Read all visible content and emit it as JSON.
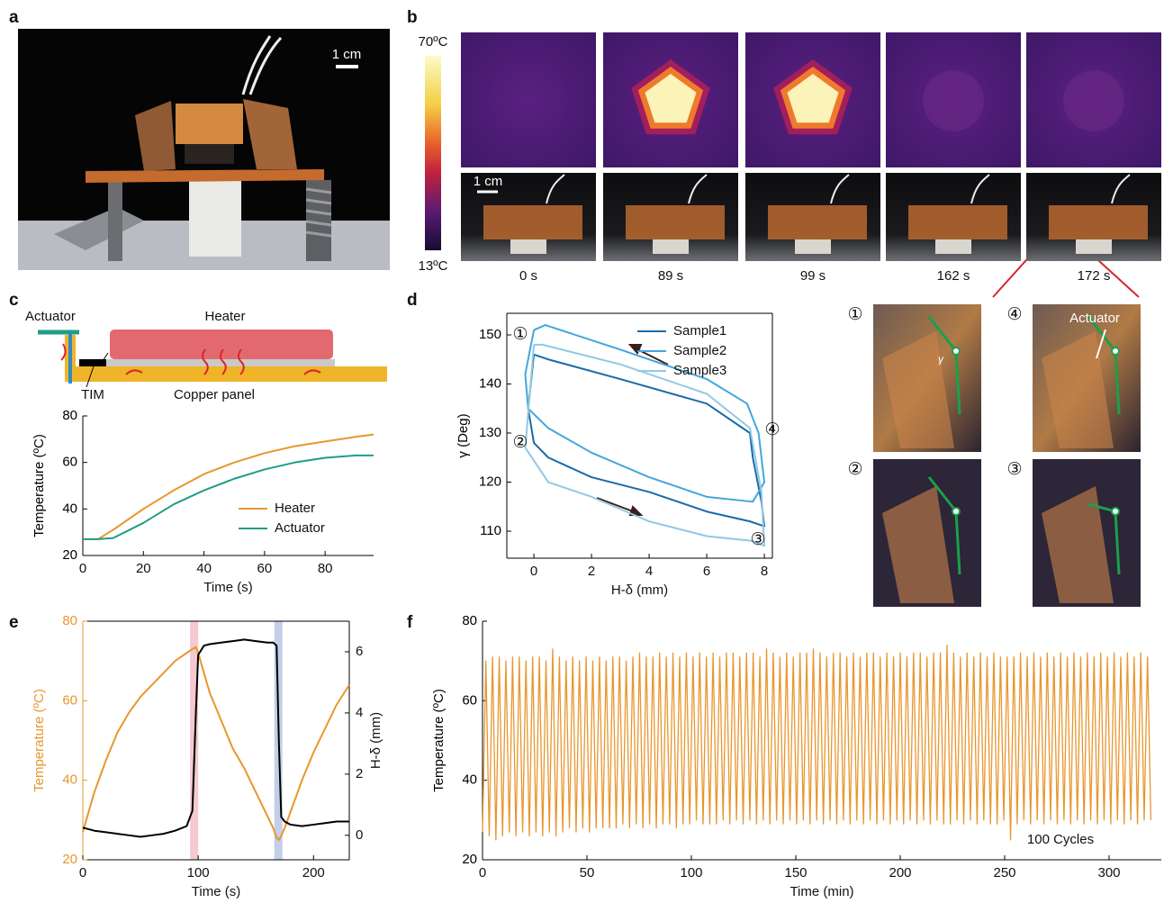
{
  "figure": {
    "panel_labels": [
      "a",
      "b",
      "c",
      "d",
      "e",
      "f"
    ],
    "a_scale_bar": "1 cm",
    "b_colorbar_max": "70ºC",
    "b_colorbar_min": "13ºC",
    "b_scale_bar": "1 cm",
    "b_times": [
      "0 s",
      "89 s",
      "99 s",
      "162 s",
      "172 s"
    ],
    "c_schematic": {
      "actuator": "Actuator",
      "heater": "Heater",
      "tim": "TIM",
      "copper_panel": "Copper panel"
    },
    "d_insets": {
      "labels": [
        "①",
        "④",
        "②",
        "③"
      ],
      "actuator": "Actuator",
      "angle": "γ"
    }
  },
  "chart_data": [
    {
      "type": "line",
      "x_label": "Time (s)",
      "y_label": "Temperature (ºC)",
      "x": [
        0,
        5,
        10,
        20,
        30,
        40,
        50,
        60,
        70,
        80,
        90,
        96
      ],
      "series": [
        {
          "name": "Heater",
          "color": "#e8962e",
          "values": [
            27,
            27,
            31,
            40,
            48,
            55,
            60,
            64,
            67,
            69,
            71,
            72
          ]
        },
        {
          "name": "Actuator",
          "color": "#1e9e86",
          "values": [
            27,
            27,
            27.5,
            34,
            42,
            48,
            53,
            57,
            60,
            62,
            63,
            63
          ]
        }
      ],
      "xlim": [
        0,
        96
      ],
      "ylim": [
        20,
        80
      ],
      "xticks": [
        0,
        20,
        40,
        60,
        80
      ],
      "yticks": [
        20,
        40,
        60,
        80
      ],
      "legend": "lower right"
    },
    {
      "type": "line",
      "x_label": "H-δ (mm)",
      "y_label": "γ (Deg)",
      "series": [
        {
          "name": "Sample1",
          "color": "#1a6aa8",
          "x": [
            0,
            0.5,
            3,
            6,
            7.5,
            7.6,
            7.9,
            8,
            7.5,
            6,
            4,
            2,
            0.5,
            0,
            -0.2,
            0
          ],
          "values": [
            146,
            145,
            141,
            136,
            130,
            125,
            116,
            111,
            112,
            114,
            118,
            121,
            125,
            128,
            135,
            146
          ]
        },
        {
          "name": "Sample2",
          "color": "#45a5dc",
          "x": [
            0,
            0.4,
            3,
            6,
            7.4,
            7.8,
            8,
            7.6,
            6,
            4,
            2,
            0.5,
            -0.2,
            -0.3,
            0
          ],
          "values": [
            151,
            152,
            147,
            141,
            136,
            130,
            120,
            116,
            117,
            121,
            126,
            131,
            135,
            142,
            151
          ]
        },
        {
          "name": "Sample3",
          "color": "#90c9e4",
          "x": [
            0,
            0.3,
            3,
            6,
            7.5,
            7.9,
            8,
            7.6,
            6,
            4,
            2,
            0.5,
            -0.3,
            0
          ],
          "values": [
            148,
            148,
            144,
            138,
            131,
            118,
            107,
            108,
            109,
            112,
            117,
            120,
            127,
            148
          ]
        }
      ],
      "xlim": [
        -0.94,
        8.28
      ],
      "ylim": [
        104.5,
        154.4
      ],
      "xticks": [
        0,
        2,
        4,
        6,
        8
      ],
      "yticks": [
        110,
        120,
        130,
        140,
        150
      ],
      "legend": "upper right",
      "box": true,
      "annotations": [
        "①",
        "②",
        "③",
        "④"
      ]
    },
    {
      "type": "line",
      "x_label": "Time (s)",
      "y_label": "Temperature (ºC)",
      "y2_label": "H-δ (mm)",
      "x": [
        0,
        10,
        20,
        30,
        40,
        50,
        60,
        70,
        80,
        90,
        95,
        98,
        100,
        105,
        110,
        120,
        130,
        140,
        150,
        160,
        165,
        168,
        170,
        172,
        175,
        180,
        190,
        200,
        210,
        220,
        231
      ],
      "series": [
        {
          "color": "#e8962e",
          "values": [
            27,
            37,
            45,
            52,
            57,
            61,
            64,
            67,
            70,
            72,
            73,
            73.5,
            72,
            67,
            62,
            55,
            48,
            43,
            37,
            31,
            28,
            25.5,
            25,
            26,
            28,
            32,
            40,
            47,
            53,
            59,
            64
          ]
        },
        {
          "color": "#000000",
          "axis": "y2",
          "values": [
            0.25,
            0.15,
            0.1,
            0.05,
            0,
            -0.05,
            0,
            0.05,
            0.15,
            0.3,
            0.8,
            4,
            5.9,
            6.2,
            6.25,
            6.3,
            6.35,
            6.4,
            6.35,
            6.3,
            6.3,
            6.2,
            3,
            0.6,
            0.45,
            0.35,
            0.3,
            0.35,
            0.4,
            0.45,
            0.45
          ]
        }
      ],
      "xlim": [
        0,
        231
      ],
      "ylim": [
        20,
        80
      ],
      "y2lim": [
        -0.8,
        7.0
      ],
      "xticks": [
        0,
        100,
        200
      ],
      "yticks": [
        20,
        40,
        60,
        80
      ],
      "y2ticks": [
        0,
        2,
        4,
        6
      ],
      "y_axis_color": "#e8962e",
      "box": true,
      "highlight_ranges": [
        {
          "xmin": 93,
          "xmax": 100,
          "color": "#f6c9cf"
        },
        {
          "xmin": 166,
          "xmax": 173,
          "color": "#c3cfe8"
        }
      ]
    },
    {
      "type": "line",
      "x_label": "Time (min)",
      "y_label": "Temperature (ºC)",
      "x": [
        0,
        1.6,
        3.2,
        4.8,
        6.4,
        8,
        9.6,
        11.2,
        12.8,
        14.4,
        16,
        17.6,
        19.2,
        20.8,
        22.4,
        24,
        25.6,
        27.2,
        28.8,
        30.4,
        32,
        33.6,
        35.2,
        36.8,
        38.4,
        40,
        41.6,
        43.2,
        44.8,
        46.4,
        48,
        49.6,
        51.2,
        52.8,
        54.4,
        56,
        57.6,
        59.2,
        60.8,
        62.4,
        64,
        65.6,
        67.2,
        68.8,
        70.4,
        72,
        73.6,
        75.2,
        76.8,
        78.4,
        80,
        81.6,
        83.2,
        84.8,
        86.4,
        88,
        89.6,
        91.2,
        92.8,
        94.4,
        96,
        97.6,
        99.2,
        100.8,
        102.4,
        104,
        105.6,
        107.2,
        108.8,
        110.4,
        112,
        113.6,
        115.2,
        116.8,
        118.4,
        120,
        121.6,
        123.2,
        124.8,
        126.4,
        128,
        129.6,
        131.2,
        132.8,
        134.4,
        136,
        137.6,
        139.2,
        140.8,
        142.4,
        144,
        145.6,
        147.2,
        148.8,
        150.4,
        152,
        153.6,
        155.2,
        156.8,
        158.4,
        160,
        161.6,
        163.2,
        164.8,
        166.4,
        168,
        169.6,
        171.2,
        172.8,
        174.4,
        176,
        177.6,
        179.2,
        180.8,
        182.4,
        184,
        185.6,
        187.2,
        188.8,
        190.4,
        192,
        193.6,
        195.2,
        196.8,
        198.4,
        200,
        201.6,
        203.2,
        204.8,
        206.4,
        208,
        209.6,
        211.2,
        212.8,
        214.4,
        216,
        217.6,
        219.2,
        220.8,
        222.4,
        224,
        225.6,
        227.2,
        228.8,
        230.4,
        232,
        233.6,
        235.2,
        236.8,
        238.4,
        240,
        241.6,
        243.2,
        244.8,
        246.4,
        248,
        249.6,
        251.2,
        252.8,
        254.4,
        256,
        257.6,
        259.2,
        260.8,
        262.4,
        264,
        265.6,
        267.2,
        268.8,
        270.4,
        272,
        273.6,
        275.2,
        276.8,
        278.4,
        280,
        281.6,
        283.2,
        284.8,
        286.4,
        288,
        289.6,
        291.2,
        292.8,
        294.4,
        296,
        297.6,
        299.2,
        300.8,
        302.4,
        304,
        305.6,
        307.2,
        308.8,
        310.4,
        312,
        313.6,
        315.2,
        316.8,
        318.4,
        320
      ],
      "series": [
        {
          "color": "#e8962e",
          "values": [
            27,
            70,
            26,
            71,
            25,
            71,
            26,
            70,
            27,
            71,
            26,
            71,
            27,
            70,
            26,
            71,
            27,
            71,
            26,
            70,
            27,
            73,
            26,
            71,
            27,
            70,
            28,
            71,
            27,
            70,
            28,
            71,
            27,
            70,
            28,
            71,
            28,
            70,
            28,
            71,
            28,
            71,
            29,
            70,
            28,
            71,
            29,
            72,
            28,
            71,
            29,
            71,
            28,
            72,
            29,
            71,
            29,
            72,
            28,
            71,
            29,
            72,
            29,
            71,
            30,
            72,
            29,
            71,
            29,
            72,
            29,
            71,
            30,
            72,
            29,
            72,
            30,
            71,
            29,
            72,
            30,
            72,
            29,
            71,
            30,
            73,
            29,
            72,
            30,
            71,
            29,
            72,
            30,
            71,
            29,
            72,
            30,
            72,
            29,
            73,
            30,
            72,
            29,
            71,
            30,
            72,
            29,
            72,
            30,
            71,
            29,
            72,
            30,
            71,
            29,
            72,
            30,
            72,
            29,
            71,
            30,
            72,
            29,
            71,
            30,
            72,
            29,
            71,
            30,
            72,
            29,
            72,
            30,
            71,
            29,
            72,
            30,
            72,
            29,
            74,
            29,
            72,
            30,
            71,
            29,
            72,
            30,
            71,
            29,
            72,
            30,
            71,
            29,
            72,
            29,
            71,
            30,
            71,
            25,
            71,
            29,
            72,
            30,
            71,
            29,
            72,
            30,
            71,
            29,
            72,
            30,
            71,
            29,
            72,
            30,
            71,
            29,
            72,
            30,
            71,
            29,
            72,
            30,
            71,
            29,
            72,
            30,
            71,
            29,
            72,
            30,
            71,
            29,
            72,
            30,
            71,
            29,
            72,
            30,
            71,
            30
          ]
        }
      ],
      "xlim": [
        0,
        325
      ],
      "ylim": [
        20,
        80
      ],
      "xticks": [
        0,
        50,
        100,
        150,
        200,
        250,
        300
      ],
      "yticks": [
        20,
        40,
        60,
        80
      ],
      "annotations": [
        "100 Cycles"
      ]
    }
  ]
}
